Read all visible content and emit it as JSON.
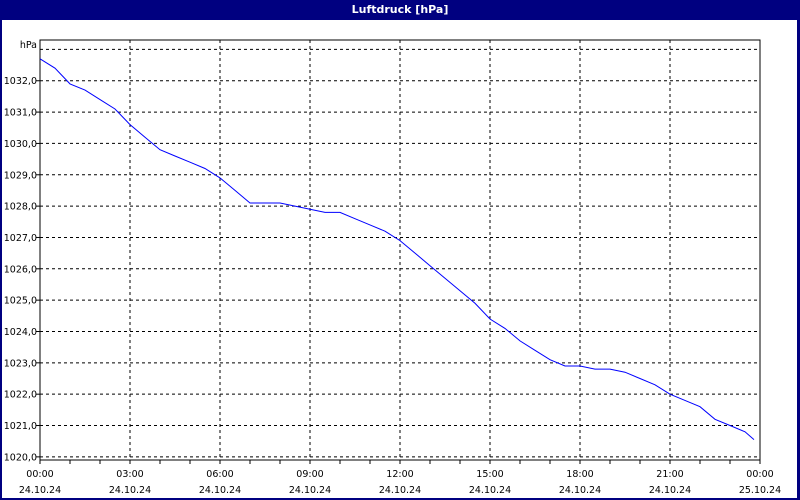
{
  "window": {
    "title": "Luftdruck [hPa]"
  },
  "chart_data": {
    "type": "line",
    "title": "Luftdruck [hPa]",
    "ylabel": "hPa",
    "ylim": [
      1019.9,
      1033.3
    ],
    "xlim_hours": [
      0,
      24
    ],
    "grid": true,
    "line_color": "#0000ff",
    "yticks": [
      "1020,0",
      "1021,0",
      "1022,0",
      "1023,0",
      "1024,0",
      "1025,0",
      "1026,0",
      "1027,0",
      "1028,0",
      "1029,0",
      "1030,0",
      "1031,0",
      "1032,0"
    ],
    "ytick_values": [
      1020,
      1021,
      1022,
      1023,
      1024,
      1025,
      1026,
      1027,
      1028,
      1029,
      1030,
      1031,
      1032
    ],
    "xticks": [
      {
        "time": "00:00",
        "date": "24.10.24"
      },
      {
        "time": "03:00",
        "date": "24.10.24"
      },
      {
        "time": "06:00",
        "date": "24.10.24"
      },
      {
        "time": "09:00",
        "date": "24.10.24"
      },
      {
        "time": "12:00",
        "date": "24.10.24"
      },
      {
        "time": "15:00",
        "date": "24.10.24"
      },
      {
        "time": "18:00",
        "date": "24.10.24"
      },
      {
        "time": "21:00",
        "date": "24.10.24"
      },
      {
        "time": "00:00",
        "date": "25.10.24"
      }
    ],
    "series": [
      {
        "x_hours": [
          0,
          0.5,
          1,
          1.5,
          2,
          2.5,
          3,
          3.5,
          4,
          4.5,
          5,
          5.5,
          6,
          6.5,
          7,
          7.5,
          8,
          8.5,
          9,
          9.5,
          10,
          10.5,
          11,
          11.5,
          12,
          12.5,
          13,
          13.5,
          14,
          14.5,
          15,
          15.5,
          16,
          16.5,
          17,
          17.5,
          18,
          18.5,
          19,
          19.5,
          20,
          20.5,
          21,
          21.5,
          22,
          22.5,
          23,
          23.5,
          23.8
        ],
        "values": [
          1032.7,
          1032.4,
          1031.9,
          1031.7,
          1031.4,
          1031.1,
          1030.6,
          1030.2,
          1029.8,
          1029.6,
          1029.4,
          1029.2,
          1028.9,
          1028.5,
          1028.1,
          1028.1,
          1028.1,
          1028.0,
          1027.9,
          1027.8,
          1027.8,
          1027.6,
          1027.4,
          1027.2,
          1026.9,
          1026.5,
          1026.1,
          1025.7,
          1025.3,
          1024.9,
          1024.4,
          1024.1,
          1023.7,
          1023.4,
          1023.1,
          1022.9,
          1022.9,
          1022.8,
          1022.8,
          1022.7,
          1022.5,
          1022.3,
          1022.0,
          1021.8,
          1021.6,
          1021.2,
          1021.0,
          1020.8,
          1020.55
        ]
      }
    ]
  }
}
